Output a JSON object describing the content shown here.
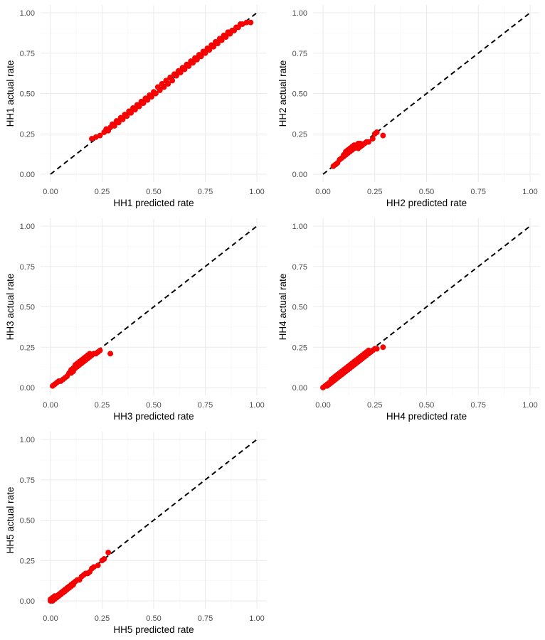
{
  "chart_data": [
    {
      "type": "scatter",
      "xlabel": "HH1 predicted rate",
      "ylabel": "HH1 actual rate",
      "xlim": [
        0,
        1
      ],
      "ylim": [
        0,
        1
      ],
      "xticks": [
        "0.00",
        "0.25",
        "0.50",
        "0.75",
        "1.00"
      ],
      "yticks": [
        "0.00",
        "0.25",
        "0.50",
        "0.75",
        "1.00"
      ],
      "grid": true,
      "reference_line": {
        "from": [
          0,
          0
        ],
        "to": [
          1,
          1
        ],
        "style": "dashed"
      },
      "points": [
        [
          0.2,
          0.22
        ],
        [
          0.22,
          0.23
        ],
        [
          0.24,
          0.24
        ],
        [
          0.26,
          0.26
        ],
        [
          0.27,
          0.28
        ],
        [
          0.28,
          0.27
        ],
        [
          0.29,
          0.29
        ],
        [
          0.3,
          0.31
        ],
        [
          0.31,
          0.3
        ],
        [
          0.32,
          0.33
        ],
        [
          0.33,
          0.32
        ],
        [
          0.34,
          0.35
        ],
        [
          0.35,
          0.34
        ],
        [
          0.36,
          0.37
        ],
        [
          0.37,
          0.36
        ],
        [
          0.38,
          0.39
        ],
        [
          0.39,
          0.38
        ],
        [
          0.4,
          0.41
        ],
        [
          0.41,
          0.4
        ],
        [
          0.42,
          0.43
        ],
        [
          0.43,
          0.42
        ],
        [
          0.44,
          0.45
        ],
        [
          0.45,
          0.44
        ],
        [
          0.46,
          0.47
        ],
        [
          0.47,
          0.46
        ],
        [
          0.48,
          0.49
        ],
        [
          0.49,
          0.48
        ],
        [
          0.5,
          0.51
        ],
        [
          0.51,
          0.5
        ],
        [
          0.52,
          0.54
        ],
        [
          0.53,
          0.52
        ],
        [
          0.54,
          0.56
        ],
        [
          0.55,
          0.54
        ],
        [
          0.56,
          0.58
        ],
        [
          0.57,
          0.56
        ],
        [
          0.58,
          0.6
        ],
        [
          0.59,
          0.58
        ],
        [
          0.6,
          0.62
        ],
        [
          0.61,
          0.61
        ],
        [
          0.62,
          0.64
        ],
        [
          0.63,
          0.63
        ],
        [
          0.64,
          0.66
        ],
        [
          0.65,
          0.65
        ],
        [
          0.66,
          0.68
        ],
        [
          0.67,
          0.67
        ],
        [
          0.68,
          0.7
        ],
        [
          0.69,
          0.69
        ],
        [
          0.7,
          0.72
        ],
        [
          0.71,
          0.71
        ],
        [
          0.72,
          0.74
        ],
        [
          0.73,
          0.73
        ],
        [
          0.74,
          0.76
        ],
        [
          0.75,
          0.75
        ],
        [
          0.76,
          0.78
        ],
        [
          0.77,
          0.77
        ],
        [
          0.78,
          0.8
        ],
        [
          0.79,
          0.79
        ],
        [
          0.8,
          0.82
        ],
        [
          0.81,
          0.81
        ],
        [
          0.82,
          0.84
        ],
        [
          0.83,
          0.83
        ],
        [
          0.84,
          0.86
        ],
        [
          0.85,
          0.85
        ],
        [
          0.86,
          0.88
        ],
        [
          0.87,
          0.87
        ],
        [
          0.88,
          0.89
        ],
        [
          0.89,
          0.89
        ],
        [
          0.9,
          0.91
        ],
        [
          0.91,
          0.91
        ],
        [
          0.92,
          0.93
        ],
        [
          0.93,
          0.93
        ],
        [
          0.95,
          0.94
        ],
        [
          0.97,
          0.94
        ]
      ]
    },
    {
      "type": "scatter",
      "xlabel": "HH2 predicted rate",
      "ylabel": "HH2 actual rate",
      "xlim": [
        0,
        1
      ],
      "ylim": [
        0,
        1
      ],
      "xticks": [
        "0.00",
        "0.25",
        "0.50",
        "0.75",
        "1.00"
      ],
      "yticks": [
        "0.00",
        "0.25",
        "0.50",
        "0.75",
        "1.00"
      ],
      "grid": true,
      "reference_line": {
        "from": [
          0,
          0
        ],
        "to": [
          1,
          1
        ],
        "style": "dashed"
      },
      "points": [
        [
          0.05,
          0.05
        ],
        [
          0.06,
          0.06
        ],
        [
          0.07,
          0.07
        ],
        [
          0.08,
          0.09
        ],
        [
          0.09,
          0.1
        ],
        [
          0.1,
          0.11
        ],
        [
          0.1,
          0.12
        ],
        [
          0.11,
          0.12
        ],
        [
          0.11,
          0.14
        ],
        [
          0.12,
          0.13
        ],
        [
          0.12,
          0.15
        ],
        [
          0.13,
          0.14
        ],
        [
          0.13,
          0.16
        ],
        [
          0.14,
          0.15
        ],
        [
          0.14,
          0.17
        ],
        [
          0.15,
          0.16
        ],
        [
          0.15,
          0.18
        ],
        [
          0.16,
          0.17
        ],
        [
          0.16,
          0.18
        ],
        [
          0.17,
          0.16
        ],
        [
          0.17,
          0.19
        ],
        [
          0.18,
          0.17
        ],
        [
          0.18,
          0.19
        ],
        [
          0.19,
          0.18
        ],
        [
          0.2,
          0.19
        ],
        [
          0.21,
          0.2
        ],
        [
          0.22,
          0.2
        ],
        [
          0.24,
          0.22
        ],
        [
          0.25,
          0.25
        ],
        [
          0.26,
          0.26
        ],
        [
          0.29,
          0.24
        ]
      ]
    },
    {
      "type": "scatter",
      "xlabel": "HH3 predicted rate",
      "ylabel": "HH3 actual rate",
      "xlim": [
        0,
        1
      ],
      "ylim": [
        0,
        1
      ],
      "xticks": [
        "0.00",
        "0.25",
        "0.50",
        "0.75",
        "1.00"
      ],
      "yticks": [
        "0.00",
        "0.25",
        "0.50",
        "0.75",
        "1.00"
      ],
      "grid": true,
      "reference_line": {
        "from": [
          0,
          0
        ],
        "to": [
          1,
          1
        ],
        "style": "dashed"
      },
      "points": [
        [
          0.01,
          0.01
        ],
        [
          0.02,
          0.02
        ],
        [
          0.03,
          0.03
        ],
        [
          0.04,
          0.04
        ],
        [
          0.05,
          0.04
        ],
        [
          0.06,
          0.05
        ],
        [
          0.07,
          0.06
        ],
        [
          0.08,
          0.07
        ],
        [
          0.09,
          0.09
        ],
        [
          0.1,
          0.09
        ],
        [
          0.1,
          0.11
        ],
        [
          0.11,
          0.1
        ],
        [
          0.11,
          0.12
        ],
        [
          0.12,
          0.12
        ],
        [
          0.12,
          0.14
        ],
        [
          0.13,
          0.13
        ],
        [
          0.13,
          0.15
        ],
        [
          0.14,
          0.14
        ],
        [
          0.14,
          0.16
        ],
        [
          0.15,
          0.15
        ],
        [
          0.15,
          0.17
        ],
        [
          0.16,
          0.16
        ],
        [
          0.16,
          0.18
        ],
        [
          0.17,
          0.17
        ],
        [
          0.17,
          0.19
        ],
        [
          0.18,
          0.18
        ],
        [
          0.18,
          0.2
        ],
        [
          0.19,
          0.19
        ],
        [
          0.19,
          0.21
        ],
        [
          0.2,
          0.2
        ],
        [
          0.21,
          0.21
        ],
        [
          0.22,
          0.21
        ],
        [
          0.23,
          0.22
        ],
        [
          0.24,
          0.23
        ],
        [
          0.29,
          0.21
        ]
      ]
    },
    {
      "type": "scatter",
      "xlabel": "HH4 predicted rate",
      "ylabel": "HH4 actual rate",
      "xlim": [
        0,
        1
      ],
      "ylim": [
        0,
        1
      ],
      "xticks": [
        "0.00",
        "0.25",
        "0.50",
        "0.75",
        "1.00"
      ],
      "yticks": [
        "0.00",
        "0.25",
        "0.50",
        "0.75",
        "1.00"
      ],
      "grid": true,
      "reference_line": {
        "from": [
          0,
          0
        ],
        "to": [
          1,
          1
        ],
        "style": "dashed"
      },
      "points": [
        [
          0.0,
          0.0
        ],
        [
          0.01,
          0.01
        ],
        [
          0.02,
          0.01
        ],
        [
          0.02,
          0.02
        ],
        [
          0.03,
          0.02
        ],
        [
          0.03,
          0.03
        ],
        [
          0.04,
          0.03
        ],
        [
          0.04,
          0.05
        ],
        [
          0.05,
          0.04
        ],
        [
          0.05,
          0.06
        ],
        [
          0.06,
          0.05
        ],
        [
          0.06,
          0.07
        ],
        [
          0.07,
          0.06
        ],
        [
          0.07,
          0.08
        ],
        [
          0.08,
          0.07
        ],
        [
          0.08,
          0.09
        ],
        [
          0.09,
          0.08
        ],
        [
          0.09,
          0.1
        ],
        [
          0.1,
          0.09
        ],
        [
          0.1,
          0.11
        ],
        [
          0.11,
          0.1
        ],
        [
          0.11,
          0.12
        ],
        [
          0.12,
          0.11
        ],
        [
          0.12,
          0.13
        ],
        [
          0.13,
          0.12
        ],
        [
          0.13,
          0.14
        ],
        [
          0.14,
          0.13
        ],
        [
          0.14,
          0.15
        ],
        [
          0.15,
          0.14
        ],
        [
          0.15,
          0.16
        ],
        [
          0.16,
          0.15
        ],
        [
          0.16,
          0.17
        ],
        [
          0.17,
          0.16
        ],
        [
          0.17,
          0.18
        ],
        [
          0.18,
          0.17
        ],
        [
          0.18,
          0.19
        ],
        [
          0.19,
          0.18
        ],
        [
          0.19,
          0.2
        ],
        [
          0.2,
          0.19
        ],
        [
          0.2,
          0.21
        ],
        [
          0.21,
          0.2
        ],
        [
          0.21,
          0.22
        ],
        [
          0.22,
          0.21
        ],
        [
          0.22,
          0.23
        ],
        [
          0.23,
          0.22
        ],
        [
          0.24,
          0.23
        ],
        [
          0.25,
          0.24
        ],
        [
          0.26,
          0.24
        ],
        [
          0.29,
          0.25
        ]
      ]
    },
    {
      "type": "scatter",
      "xlabel": "HH5 predicted rate",
      "ylabel": "HH5 actual rate",
      "xlim": [
        0,
        1
      ],
      "ylim": [
        0,
        1
      ],
      "xticks": [
        "0.00",
        "0.25",
        "0.50",
        "0.75",
        "1.00"
      ],
      "yticks": [
        "0.00",
        "0.25",
        "0.50",
        "0.75",
        "1.00"
      ],
      "grid": true,
      "reference_line": {
        "from": [
          0,
          0
        ],
        "to": [
          1,
          1
        ],
        "style": "dashed"
      },
      "points": [
        [
          0.0,
          0.0
        ],
        [
          0.0,
          0.01
        ],
        [
          0.01,
          0.0
        ],
        [
          0.01,
          0.01
        ],
        [
          0.01,
          0.02
        ],
        [
          0.02,
          0.01
        ],
        [
          0.02,
          0.02
        ],
        [
          0.02,
          0.03
        ],
        [
          0.03,
          0.02
        ],
        [
          0.03,
          0.03
        ],
        [
          0.04,
          0.04
        ],
        [
          0.04,
          0.03
        ],
        [
          0.05,
          0.05
        ],
        [
          0.05,
          0.04
        ],
        [
          0.06,
          0.06
        ],
        [
          0.06,
          0.05
        ],
        [
          0.07,
          0.07
        ],
        [
          0.07,
          0.06
        ],
        [
          0.08,
          0.08
        ],
        [
          0.08,
          0.07
        ],
        [
          0.09,
          0.09
        ],
        [
          0.09,
          0.08
        ],
        [
          0.1,
          0.1
        ],
        [
          0.1,
          0.09
        ],
        [
          0.11,
          0.11
        ],
        [
          0.11,
          0.1
        ],
        [
          0.12,
          0.12
        ],
        [
          0.13,
          0.13
        ],
        [
          0.14,
          0.13
        ],
        [
          0.15,
          0.15
        ],
        [
          0.16,
          0.16
        ],
        [
          0.17,
          0.17
        ],
        [
          0.18,
          0.17
        ],
        [
          0.19,
          0.18
        ],
        [
          0.2,
          0.2
        ],
        [
          0.21,
          0.21
        ],
        [
          0.23,
          0.22
        ],
        [
          0.25,
          0.25
        ],
        [
          0.26,
          0.26
        ],
        [
          0.28,
          0.3
        ]
      ]
    }
  ],
  "colors": {
    "points": "#ff0000",
    "reference_line": "#000000",
    "grid": "#ebebeb",
    "tick_text": "#4d4d4d"
  }
}
